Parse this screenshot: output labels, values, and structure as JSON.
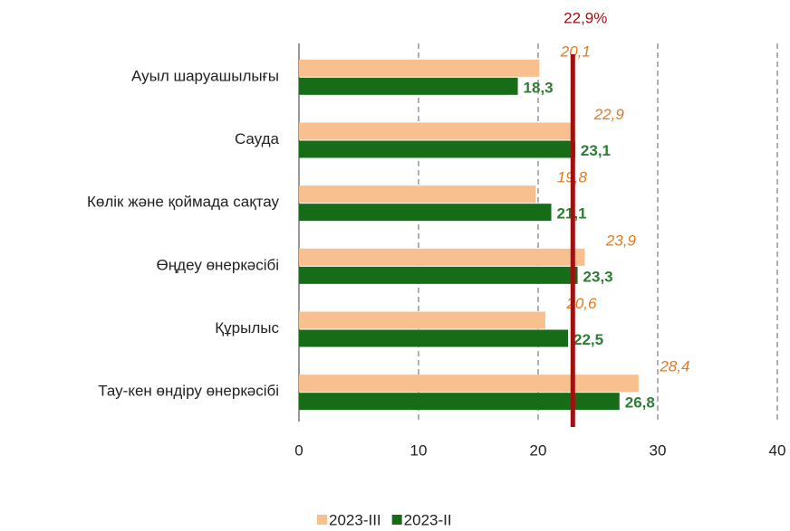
{
  "chart_data": {
    "type": "bar",
    "orientation": "horizontal",
    "categories": [
      "Ауыл шаруашылығы",
      "Сауда",
      "Көлік және қоймада сақтау",
      "Өңдеу өнеркәсібі",
      "Құрылыс",
      "Тау-кен өндіру өнеркәсібі"
    ],
    "series": [
      {
        "name": "2023-III",
        "color": "#f9c08f",
        "label_color": "#e07b20",
        "values": [
          20.1,
          22.9,
          19.8,
          23.9,
          20.6,
          28.4
        ],
        "value_labels": [
          "20,1",
          "22,9",
          "19,8",
          "23,9",
          "20,6",
          "28,4"
        ]
      },
      {
        "name": "2023-II",
        "color": "#176d17",
        "label_color": "#2e7d32",
        "values": [
          18.3,
          23.1,
          21.1,
          23.3,
          22.5,
          26.8
        ],
        "value_labels": [
          "18,3",
          "23,1",
          "21,1",
          "23,3",
          "22,5",
          "26,8"
        ]
      }
    ],
    "xlim": [
      0,
      40
    ],
    "xticks": [
      0,
      10,
      20,
      30,
      40
    ],
    "grid": true,
    "legend": "bottom",
    "reference_line": {
      "value": 22.9,
      "label": "22,9%",
      "color": "#a01010"
    }
  }
}
